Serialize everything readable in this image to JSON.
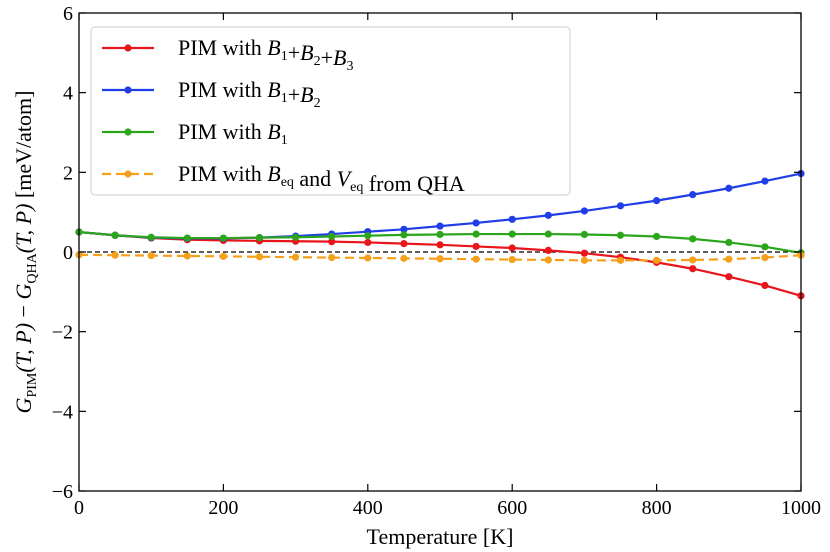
{
  "chart_data": {
    "type": "line",
    "title": "",
    "xlabel": "Temperature [K]",
    "ylabel": "G_PIM(T, P) − G_QHA(T, P)  [meV/atom]",
    "ylabel_parts": {
      "g1": "G",
      "sub1": "PIM",
      "args1": "(T, P)",
      "minus": " − ",
      "g2": "G",
      "sub2": "QHA",
      "args2": "(T, P)",
      "unit": "[meV/atom]"
    },
    "xlim": [
      0,
      1000
    ],
    "ylim": [
      -6,
      6
    ],
    "xticks": [
      0,
      200,
      400,
      600,
      800,
      1000
    ],
    "yticks": [
      -6,
      -4,
      -2,
      0,
      2,
      4,
      6
    ],
    "xtick_labels": [
      "0",
      "200",
      "400",
      "600",
      "800",
      "1000"
    ],
    "ytick_labels": [
      "−6",
      "−4",
      "−2",
      "0",
      "2",
      "4",
      "6"
    ],
    "grid": false,
    "legend_position": "top-left",
    "reference_line": {
      "y": 0,
      "style": "dashed",
      "color": "#000000"
    },
    "x": [
      0,
      50,
      100,
      150,
      200,
      250,
      300,
      350,
      400,
      450,
      500,
      550,
      600,
      650,
      700,
      750,
      800,
      850,
      900,
      950,
      1000
    ],
    "series": [
      {
        "name": "PIM with B1+B2+B3",
        "legend_prefix": "PIM with",
        "legend_math": [
          [
            "B",
            "1"
          ],
          [
            "+B",
            "2"
          ],
          [
            "+B",
            "3"
          ]
        ],
        "color": "#e8161b",
        "dash": "solid",
        "values": [
          0.5,
          0.42,
          0.35,
          0.31,
          0.29,
          0.28,
          0.27,
          0.26,
          0.24,
          0.21,
          0.18,
          0.14,
          0.1,
          0.04,
          -0.03,
          -0.13,
          -0.26,
          -0.42,
          -0.62,
          -0.84,
          -1.1
        ]
      },
      {
        "name": "PIM with B1+B2",
        "legend_prefix": "PIM with",
        "legend_math": [
          [
            "B",
            "1"
          ],
          [
            "+B",
            "2"
          ]
        ],
        "color": "#1f3ee8",
        "dash": "solid",
        "values": [
          0.5,
          0.42,
          0.36,
          0.34,
          0.34,
          0.36,
          0.4,
          0.45,
          0.51,
          0.57,
          0.65,
          0.73,
          0.82,
          0.92,
          1.03,
          1.16,
          1.29,
          1.44,
          1.6,
          1.78,
          1.97
        ]
      },
      {
        "name": "PIM with B1",
        "legend_prefix": "PIM with",
        "legend_math": [
          [
            "B",
            "1"
          ]
        ],
        "color": "#2aa51c",
        "dash": "solid",
        "values": [
          0.5,
          0.42,
          0.37,
          0.35,
          0.35,
          0.36,
          0.37,
          0.39,
          0.41,
          0.43,
          0.44,
          0.45,
          0.45,
          0.45,
          0.44,
          0.42,
          0.39,
          0.33,
          0.24,
          0.13,
          -0.02
        ]
      },
      {
        "name": "PIM with B_eq and V_eq from QHA",
        "legend_prefix": "PIM with",
        "legend_math": [
          [
            "B",
            "eq"
          ],
          [
            " and ",
            ""
          ],
          [
            "V",
            "eq"
          ],
          [
            " from QHA",
            ""
          ]
        ],
        "color": "#f5a01a",
        "dash": "dashed",
        "values": [
          -0.07,
          -0.08,
          -0.09,
          -0.1,
          -0.11,
          -0.12,
          -0.13,
          -0.14,
          -0.15,
          -0.16,
          -0.17,
          -0.18,
          -0.19,
          -0.2,
          -0.21,
          -0.21,
          -0.21,
          -0.2,
          -0.18,
          -0.14,
          -0.08
        ]
      }
    ]
  }
}
